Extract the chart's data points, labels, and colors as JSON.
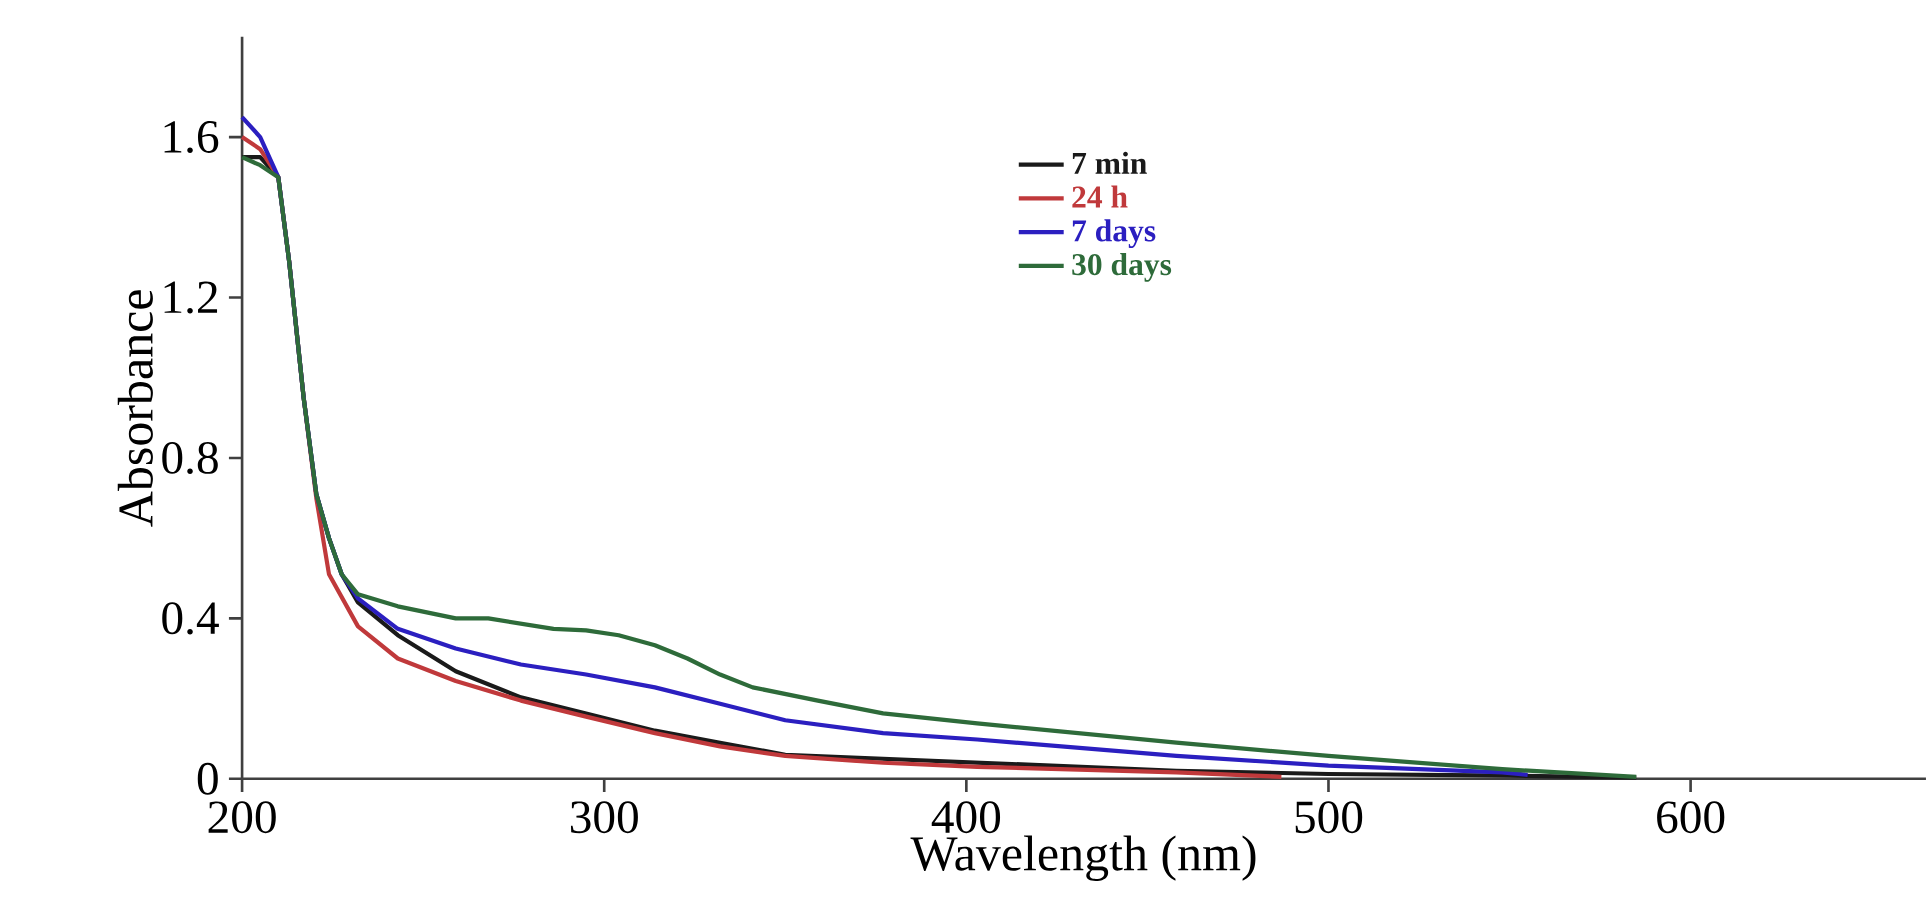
{
  "chart_data": {
    "type": "line",
    "xlabel": "Wavelength (nm)",
    "ylabel": "Absorbance",
    "xlim": [
      200,
      665
    ],
    "ylim": [
      0,
      1.85
    ],
    "xticks": [
      200,
      300,
      400,
      500,
      600
    ],
    "yticks": [
      0,
      0.4,
      0.8,
      1.2,
      1.6
    ],
    "legend": "top",
    "grid": false,
    "marker": "none",
    "line_style": "solid",
    "series": [
      {
        "name": "7 min",
        "color": "#1a1a1a",
        "x": [
          200,
          205,
          210,
          213,
          217,
          220.5,
          224,
          227.5,
          232,
          243,
          259,
          277,
          295,
          314,
          332,
          350,
          377,
          403,
          458,
          500,
          550,
          585
        ],
        "values": [
          1.55,
          1.55,
          1.5,
          1.29,
          0.95,
          0.71,
          0.6,
          0.51,
          0.44,
          0.358,
          0.268,
          0.203,
          0.163,
          0.12,
          0.09,
          0.06,
          null,
          null,
          0.02,
          0.012,
          0.008,
          0.003
        ]
      },
      {
        "name": "24 h",
        "color": "#c0393b",
        "x": [
          200,
          205,
          210,
          213,
          217,
          220.5,
          224,
          232,
          243,
          259,
          277,
          295,
          314,
          332,
          350,
          377,
          403,
          458,
          487
        ],
        "values": [
          1.6,
          1.57,
          1.5,
          1.29,
          0.95,
          0.7,
          0.51,
          0.38,
          0.3,
          0.244,
          0.195,
          0.155,
          0.114,
          0.081,
          0.057,
          0.04,
          0.03,
          0.016,
          0.005
        ]
      },
      {
        "name": "7 days",
        "color": "#2b1fc0",
        "x": [
          200,
          205,
          210,
          213,
          217,
          220.5,
          224,
          227.5,
          232,
          243,
          259,
          277,
          295,
          314,
          332,
          350,
          377,
          403,
          458,
          500,
          548,
          555
        ],
        "values": [
          1.65,
          1.6,
          1.5,
          1.29,
          0.95,
          0.71,
          0.6,
          0.51,
          0.45,
          0.374,
          0.325,
          0.285,
          0.26,
          0.228,
          0.187,
          0.146,
          0.114,
          0.098,
          0.057,
          0.033,
          0.016,
          0.01
        ]
      },
      {
        "name": "30 days",
        "color": "#2e6b3a",
        "x": [
          200,
          205,
          210,
          213,
          217,
          220.5,
          224,
          227.5,
          232,
          243,
          259,
          268,
          286,
          295,
          304,
          314,
          323,
          332,
          341,
          359,
          377,
          403,
          458,
          500,
          548,
          585
        ],
        "values": [
          1.55,
          1.53,
          1.5,
          1.29,
          0.95,
          0.71,
          0.6,
          0.51,
          0.46,
          0.43,
          0.4,
          0.4,
          0.374,
          0.37,
          0.358,
          0.333,
          0.3,
          0.26,
          0.228,
          0.195,
          0.163,
          0.138,
          0.09,
          0.057,
          0.024,
          0.005
        ]
      }
    ]
  }
}
